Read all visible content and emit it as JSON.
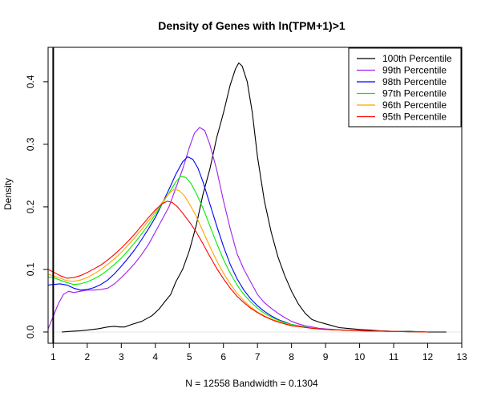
{
  "chart_data": {
    "type": "line",
    "title": "Density of Genes with ln(TPM+1)>1",
    "xlabel": "N = 12558   Bandwidth = 0.1304",
    "ylabel": "Density",
    "xlim": [
      0.85,
      13
    ],
    "ylim": [
      -0.018,
      0.455
    ],
    "x_ticks": [
      1,
      2,
      3,
      4,
      5,
      6,
      7,
      8,
      9,
      10,
      11,
      12,
      13
    ],
    "y_ticks": [
      0.0,
      0.1,
      0.2,
      0.3,
      0.4
    ],
    "y_tick_labels": [
      "0.0",
      "0.1",
      "0.2",
      "0.3",
      "0.4"
    ],
    "reference_line_x": 1,
    "baseline_y": 0,
    "grid": false,
    "legend_position": "top-right",
    "series": [
      {
        "name": "100th Percentile",
        "color": "#000000",
        "points": [
          [
            1.25,
            0.0
          ],
          [
            1.5,
            0.001
          ],
          [
            1.8,
            0.002
          ],
          [
            2.0,
            0.003
          ],
          [
            2.3,
            0.005
          ],
          [
            2.6,
            0.008
          ],
          [
            2.8,
            0.009
          ],
          [
            2.95,
            0.008
          ],
          [
            3.1,
            0.008
          ],
          [
            3.3,
            0.012
          ],
          [
            3.6,
            0.017
          ],
          [
            3.9,
            0.026
          ],
          [
            4.1,
            0.036
          ],
          [
            4.3,
            0.05
          ],
          [
            4.45,
            0.06
          ],
          [
            4.6,
            0.08
          ],
          [
            4.8,
            0.1
          ],
          [
            5.0,
            0.13
          ],
          [
            5.2,
            0.17
          ],
          [
            5.4,
            0.22
          ],
          [
            5.6,
            0.26
          ],
          [
            5.8,
            0.31
          ],
          [
            6.0,
            0.35
          ],
          [
            6.2,
            0.395
          ],
          [
            6.35,
            0.42
          ],
          [
            6.45,
            0.43
          ],
          [
            6.55,
            0.425
          ],
          [
            6.7,
            0.4
          ],
          [
            6.85,
            0.35
          ],
          [
            7.0,
            0.28
          ],
          [
            7.2,
            0.21
          ],
          [
            7.4,
            0.16
          ],
          [
            7.6,
            0.12
          ],
          [
            7.8,
            0.09
          ],
          [
            8.0,
            0.065
          ],
          [
            8.2,
            0.045
          ],
          [
            8.4,
            0.03
          ],
          [
            8.6,
            0.02
          ],
          [
            8.8,
            0.016
          ],
          [
            9.0,
            0.013
          ],
          [
            9.2,
            0.01
          ],
          [
            9.4,
            0.007
          ],
          [
            9.6,
            0.006
          ],
          [
            9.8,
            0.005
          ],
          [
            10.0,
            0.004
          ],
          [
            10.3,
            0.003
          ],
          [
            10.6,
            0.002
          ],
          [
            11.0,
            0.001
          ],
          [
            11.5,
            0.001
          ],
          [
            12.0,
            0.0
          ],
          [
            12.55,
            0.0
          ]
        ]
      },
      {
        "name": "99th Percentile",
        "color": "#a020f0",
        "points": [
          [
            0.85,
            0.005
          ],
          [
            1.0,
            0.025
          ],
          [
            1.15,
            0.045
          ],
          [
            1.3,
            0.06
          ],
          [
            1.45,
            0.065
          ],
          [
            1.6,
            0.063
          ],
          [
            1.8,
            0.065
          ],
          [
            2.0,
            0.067
          ],
          [
            2.2,
            0.067
          ],
          [
            2.4,
            0.068
          ],
          [
            2.6,
            0.07
          ],
          [
            2.8,
            0.077
          ],
          [
            3.0,
            0.087
          ],
          [
            3.2,
            0.098
          ],
          [
            3.4,
            0.11
          ],
          [
            3.6,
            0.124
          ],
          [
            3.8,
            0.14
          ],
          [
            4.0,
            0.16
          ],
          [
            4.2,
            0.18
          ],
          [
            4.4,
            0.2
          ],
          [
            4.6,
            0.23
          ],
          [
            4.8,
            0.26
          ],
          [
            5.0,
            0.295
          ],
          [
            5.15,
            0.318
          ],
          [
            5.3,
            0.327
          ],
          [
            5.45,
            0.322
          ],
          [
            5.6,
            0.3
          ],
          [
            5.8,
            0.26
          ],
          [
            6.0,
            0.21
          ],
          [
            6.2,
            0.165
          ],
          [
            6.4,
            0.125
          ],
          [
            6.6,
            0.1
          ],
          [
            6.8,
            0.08
          ],
          [
            7.0,
            0.06
          ],
          [
            7.2,
            0.047
          ],
          [
            7.4,
            0.038
          ],
          [
            7.6,
            0.03
          ],
          [
            7.8,
            0.023
          ],
          [
            8.0,
            0.017
          ],
          [
            8.2,
            0.013
          ],
          [
            8.4,
            0.01
          ],
          [
            8.6,
            0.008
          ],
          [
            8.8,
            0.006
          ],
          [
            9.0,
            0.005
          ],
          [
            9.5,
            0.003
          ],
          [
            10.0,
            0.002
          ],
          [
            11.0,
            0.001
          ],
          [
            12.0,
            0.0
          ]
        ]
      },
      {
        "name": "98th Percentile",
        "color": "#0000ff",
        "points": [
          [
            0.85,
            0.075
          ],
          [
            1.0,
            0.076
          ],
          [
            1.2,
            0.077
          ],
          [
            1.4,
            0.075
          ],
          [
            1.6,
            0.07
          ],
          [
            1.8,
            0.067
          ],
          [
            2.0,
            0.068
          ],
          [
            2.2,
            0.071
          ],
          [
            2.4,
            0.076
          ],
          [
            2.6,
            0.083
          ],
          [
            2.8,
            0.093
          ],
          [
            3.0,
            0.105
          ],
          [
            3.2,
            0.118
          ],
          [
            3.4,
            0.132
          ],
          [
            3.6,
            0.148
          ],
          [
            3.8,
            0.165
          ],
          [
            4.0,
            0.183
          ],
          [
            4.2,
            0.205
          ],
          [
            4.4,
            0.228
          ],
          [
            4.6,
            0.252
          ],
          [
            4.8,
            0.272
          ],
          [
            4.95,
            0.28
          ],
          [
            5.1,
            0.276
          ],
          [
            5.25,
            0.262
          ],
          [
            5.4,
            0.24
          ],
          [
            5.6,
            0.205
          ],
          [
            5.8,
            0.17
          ],
          [
            6.0,
            0.137
          ],
          [
            6.2,
            0.108
          ],
          [
            6.4,
            0.085
          ],
          [
            6.6,
            0.067
          ],
          [
            6.8,
            0.053
          ],
          [
            7.0,
            0.042
          ],
          [
            7.2,
            0.033
          ],
          [
            7.4,
            0.026
          ],
          [
            7.6,
            0.02
          ],
          [
            7.8,
            0.016
          ],
          [
            8.0,
            0.012
          ],
          [
            8.3,
            0.009
          ],
          [
            8.6,
            0.006
          ],
          [
            9.0,
            0.004
          ],
          [
            9.5,
            0.003
          ],
          [
            10.0,
            0.002
          ],
          [
            11.0,
            0.001
          ],
          [
            12.0,
            0.0
          ]
        ]
      },
      {
        "name": "97th Percentile",
        "color": "#00ee00",
        "points": [
          [
            0.85,
            0.088
          ],
          [
            1.0,
            0.087
          ],
          [
            1.2,
            0.083
          ],
          [
            1.4,
            0.079
          ],
          [
            1.6,
            0.076
          ],
          [
            1.8,
            0.077
          ],
          [
            2.0,
            0.08
          ],
          [
            2.2,
            0.085
          ],
          [
            2.4,
            0.091
          ],
          [
            2.6,
            0.099
          ],
          [
            2.8,
            0.108
          ],
          [
            3.0,
            0.118
          ],
          [
            3.2,
            0.13
          ],
          [
            3.4,
            0.143
          ],
          [
            3.6,
            0.157
          ],
          [
            3.8,
            0.172
          ],
          [
            4.0,
            0.188
          ],
          [
            4.2,
            0.205
          ],
          [
            4.4,
            0.222
          ],
          [
            4.6,
            0.24
          ],
          [
            4.75,
            0.249
          ],
          [
            4.9,
            0.247
          ],
          [
            5.05,
            0.237
          ],
          [
            5.2,
            0.222
          ],
          [
            5.4,
            0.198
          ],
          [
            5.6,
            0.17
          ],
          [
            5.8,
            0.142
          ],
          [
            6.0,
            0.116
          ],
          [
            6.2,
            0.094
          ],
          [
            6.4,
            0.075
          ],
          [
            6.6,
            0.06
          ],
          [
            6.8,
            0.048
          ],
          [
            7.0,
            0.038
          ],
          [
            7.2,
            0.03
          ],
          [
            7.4,
            0.024
          ],
          [
            7.6,
            0.019
          ],
          [
            7.8,
            0.015
          ],
          [
            8.0,
            0.012
          ],
          [
            8.3,
            0.009
          ],
          [
            8.6,
            0.006
          ],
          [
            9.0,
            0.004
          ],
          [
            9.5,
            0.003
          ],
          [
            10.0,
            0.002
          ],
          [
            11.0,
            0.001
          ],
          [
            12.0,
            0.0
          ]
        ]
      },
      {
        "name": "96th Percentile",
        "color": "#ffa500",
        "points": [
          [
            0.85,
            0.092
          ],
          [
            1.0,
            0.09
          ],
          [
            1.2,
            0.086
          ],
          [
            1.4,
            0.082
          ],
          [
            1.6,
            0.081
          ],
          [
            1.8,
            0.083
          ],
          [
            2.0,
            0.087
          ],
          [
            2.2,
            0.093
          ],
          [
            2.4,
            0.1
          ],
          [
            2.6,
            0.108
          ],
          [
            2.8,
            0.117
          ],
          [
            3.0,
            0.127
          ],
          [
            3.2,
            0.139
          ],
          [
            3.4,
            0.151
          ],
          [
            3.6,
            0.164
          ],
          [
            3.8,
            0.178
          ],
          [
            4.0,
            0.192
          ],
          [
            4.2,
            0.207
          ],
          [
            4.4,
            0.221
          ],
          [
            4.55,
            0.228
          ],
          [
            4.7,
            0.226
          ],
          [
            4.85,
            0.218
          ],
          [
            5.0,
            0.205
          ],
          [
            5.2,
            0.185
          ],
          [
            5.4,
            0.161
          ],
          [
            5.6,
            0.137
          ],
          [
            5.8,
            0.114
          ],
          [
            6.0,
            0.094
          ],
          [
            6.2,
            0.077
          ],
          [
            6.4,
            0.062
          ],
          [
            6.6,
            0.05
          ],
          [
            6.8,
            0.04
          ],
          [
            7.0,
            0.032
          ],
          [
            7.2,
            0.026
          ],
          [
            7.4,
            0.021
          ],
          [
            7.6,
            0.017
          ],
          [
            7.8,
            0.013
          ],
          [
            8.0,
            0.011
          ],
          [
            8.3,
            0.008
          ],
          [
            8.6,
            0.006
          ],
          [
            9.0,
            0.004
          ],
          [
            9.5,
            0.003
          ],
          [
            10.0,
            0.002
          ],
          [
            11.0,
            0.001
          ],
          [
            12.0,
            0.0
          ]
        ]
      },
      {
        "name": "95th Percentile",
        "color": "#ff0000",
        "points": [
          [
            0.85,
            0.1
          ],
          [
            1.0,
            0.096
          ],
          [
            1.2,
            0.09
          ],
          [
            1.4,
            0.086
          ],
          [
            1.6,
            0.087
          ],
          [
            1.8,
            0.09
          ],
          [
            2.0,
            0.095
          ],
          [
            2.2,
            0.101
          ],
          [
            2.4,
            0.107
          ],
          [
            2.6,
            0.115
          ],
          [
            2.8,
            0.124
          ],
          [
            3.0,
            0.134
          ],
          [
            3.2,
            0.145
          ],
          [
            3.4,
            0.157
          ],
          [
            3.6,
            0.17
          ],
          [
            3.8,
            0.183
          ],
          [
            4.0,
            0.195
          ],
          [
            4.2,
            0.205
          ],
          [
            4.35,
            0.209
          ],
          [
            4.5,
            0.207
          ],
          [
            4.65,
            0.2
          ],
          [
            4.8,
            0.19
          ],
          [
            5.0,
            0.176
          ],
          [
            5.2,
            0.16
          ],
          [
            5.4,
            0.141
          ],
          [
            5.6,
            0.121
          ],
          [
            5.8,
            0.102
          ],
          [
            6.0,
            0.085
          ],
          [
            6.2,
            0.07
          ],
          [
            6.4,
            0.057
          ],
          [
            6.6,
            0.047
          ],
          [
            6.8,
            0.038
          ],
          [
            7.0,
            0.031
          ],
          [
            7.2,
            0.025
          ],
          [
            7.4,
            0.02
          ],
          [
            7.6,
            0.016
          ],
          [
            7.8,
            0.013
          ],
          [
            8.0,
            0.01
          ],
          [
            8.3,
            0.008
          ],
          [
            8.6,
            0.006
          ],
          [
            9.0,
            0.004
          ],
          [
            9.5,
            0.003
          ],
          [
            10.0,
            0.002
          ],
          [
            11.0,
            0.001
          ],
          [
            12.0,
            0.0
          ]
        ]
      }
    ]
  }
}
